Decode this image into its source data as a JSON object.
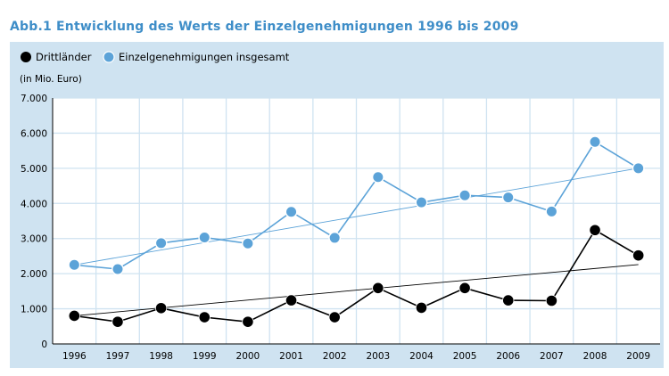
{
  "title": "Abb.1  Entwicklung des Werts der Einzelgenehmigungen 1996 bis 2009",
  "chart_data": {
    "type": "line",
    "title": "Abb.1  Entwicklung des Werts der Einzelgenehmigungen 1996 bis 2009",
    "unit_label": "(in Mio. Euro)",
    "xlabel": "",
    "ylabel": "",
    "categories": [
      "1996",
      "1997",
      "1998",
      "1999",
      "2000",
      "2001",
      "2002",
      "2003",
      "2004",
      "2005",
      "2006",
      "2007",
      "2008",
      "2009"
    ],
    "ylim": [
      0,
      7000
    ],
    "yticks": [
      0,
      1000,
      2000,
      3000,
      4000,
      5000,
      6000,
      7000
    ],
    "ytick_labels": [
      "0",
      "1.000",
      "2.000",
      "3.000",
      "4.000",
      "5.000",
      "6.000",
      "7.000"
    ],
    "grid": true,
    "legend_position": "top-left",
    "series": [
      {
        "name": "Drittländer",
        "color": "#000000",
        "values": [
          800,
          630,
          1020,
          760,
          630,
          1240,
          760,
          1590,
          1030,
          1590,
          1240,
          1230,
          3240,
          2520
        ],
        "trend": [
          800,
          2260
        ]
      },
      {
        "name": "Einzelgenehmigungen insgesamt",
        "color": "#5ca3d8",
        "values": [
          2250,
          2130,
          2870,
          3030,
          2860,
          3760,
          3020,
          4750,
          4030,
          4230,
          4170,
          3770,
          5750,
          5000
        ],
        "trend": [
          2250,
          5000
        ]
      }
    ]
  }
}
